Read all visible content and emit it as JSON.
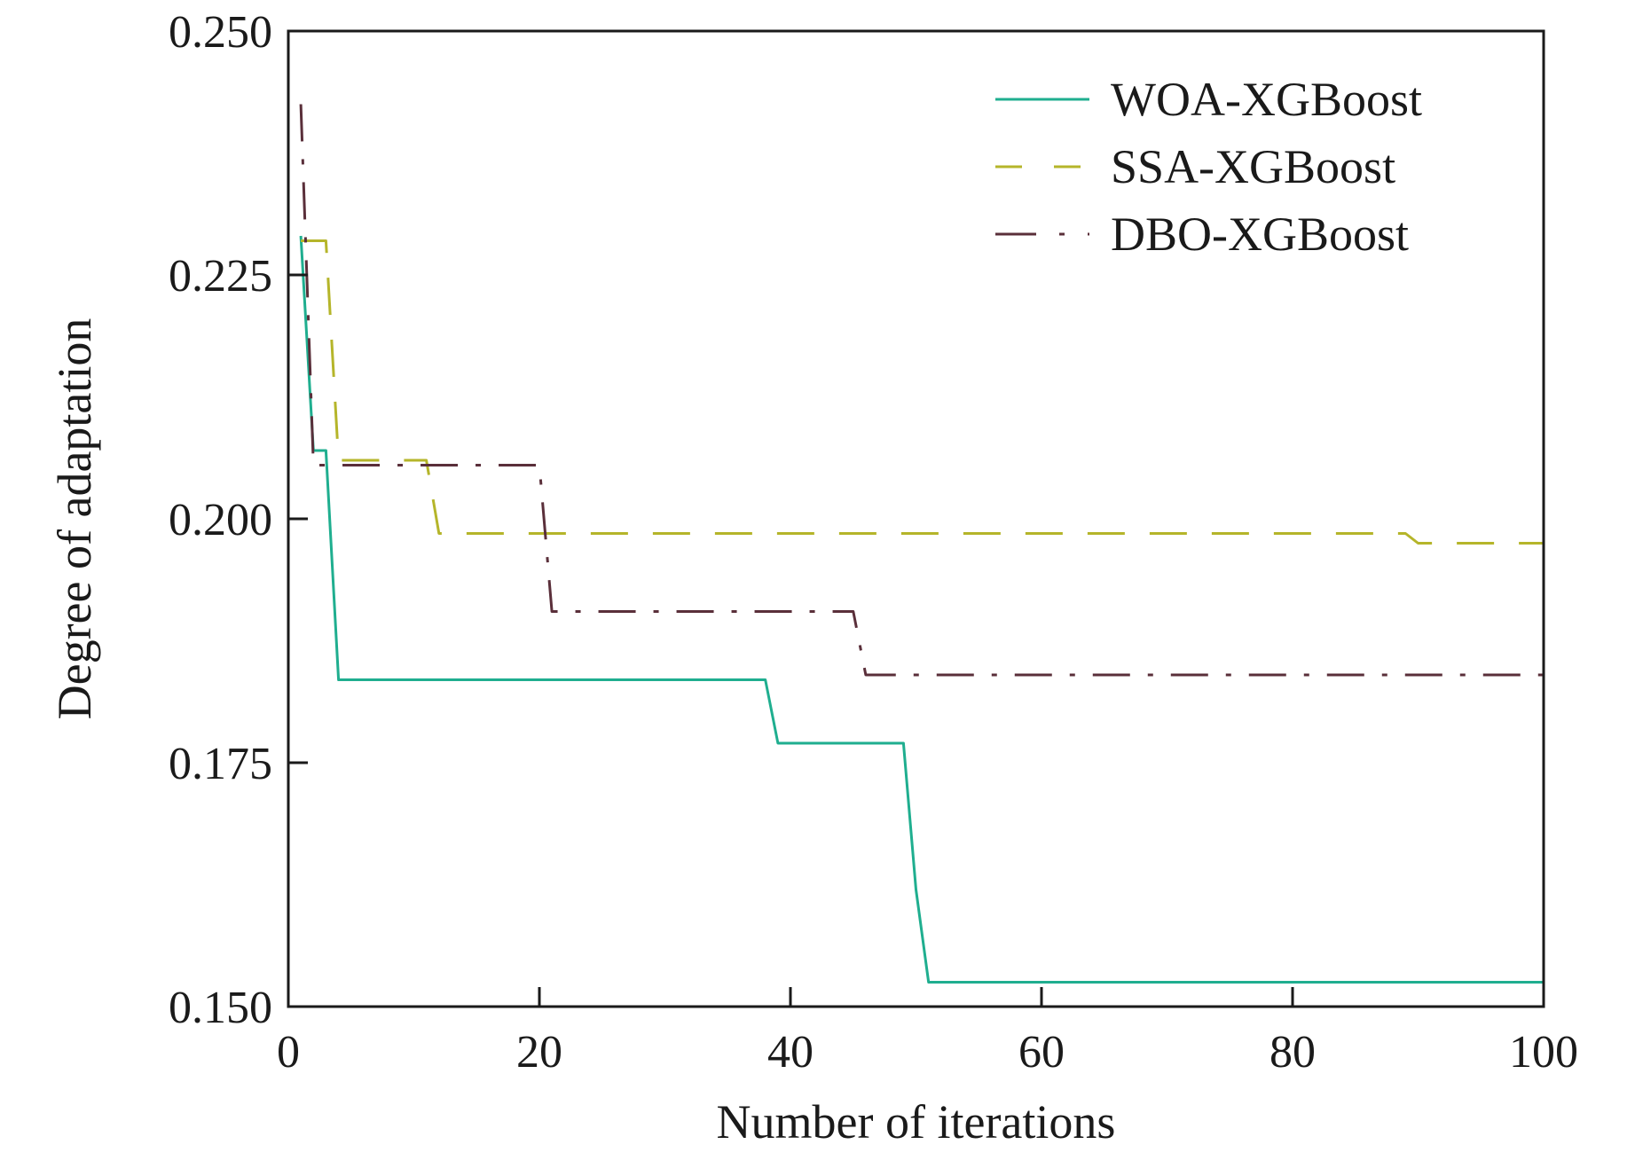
{
  "chart_data": {
    "type": "line",
    "xlabel": "Number of iterations",
    "ylabel": "Degree of adaptation",
    "xlim": [
      0,
      100
    ],
    "ylim": [
      0.15,
      0.25
    ],
    "x_ticks": [
      0,
      20,
      40,
      60,
      80,
      100
    ],
    "x_tick_labels": [
      "0",
      "20",
      "40",
      "60",
      "80",
      "100"
    ],
    "y_ticks": [
      0.15,
      0.175,
      0.2,
      0.225,
      0.25
    ],
    "y_tick_labels": [
      "0.150",
      "0.175",
      "0.200",
      "0.225",
      "0.250"
    ],
    "grid": false,
    "legend_position": "top-right",
    "series": [
      {
        "name": "WOA-XGBoost",
        "color": "#1fae8f",
        "style": "solid",
        "x": [
          1,
          2,
          3,
          4,
          38,
          39,
          49,
          50,
          51,
          100
        ],
        "y": [
          0.229,
          0.207,
          0.207,
          0.1835,
          0.1835,
          0.177,
          0.177,
          0.162,
          0.1525,
          0.1525
        ]
      },
      {
        "name": "SSA-XGBoost",
        "color": "#b5b52a",
        "style": "dashed",
        "x": [
          1,
          3,
          4,
          11,
          12,
          89,
          90,
          100
        ],
        "y": [
          0.2285,
          0.2285,
          0.206,
          0.206,
          0.1985,
          0.1985,
          0.1975,
          0.1975
        ]
      },
      {
        "name": "DBO-XGBoost",
        "color": "#5a2f3a",
        "style": "dashdot",
        "x": [
          1,
          2,
          20,
          21,
          45,
          46,
          100
        ],
        "y": [
          0.2425,
          0.2055,
          0.2055,
          0.1905,
          0.1905,
          0.184,
          0.184
        ]
      }
    ]
  }
}
